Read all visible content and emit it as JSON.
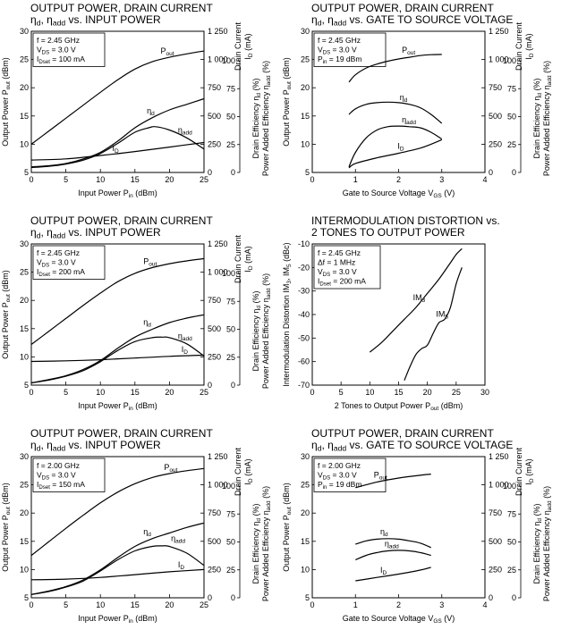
{
  "chart_data": [
    {
      "type": "line",
      "title_lines": [
        "OUTPUT POWER, DRAIN CURRENT",
        "ηd, ηadd vs. INPUT POWER"
      ],
      "conditions": [
        "f = 2.45 GHz",
        "VDS = 3.0 V",
        "IDset = 100 mA"
      ],
      "xlabel": "Input Power  Pin (dBm)",
      "ylabel": "Output Power  Pout (dBm)",
      "y2label": [
        "Drain Current",
        "ID (mA)"
      ],
      "y3label": [
        "Drain Efficiency  ηd (%)",
        "Power Added Efficiency  ηadd (%)"
      ],
      "xlim": [
        0,
        25
      ],
      "ylim": [
        5,
        30
      ],
      "y2lim": [
        0,
        1250
      ],
      "y3lim": [
        0,
        100
      ],
      "xticks": [
        0,
        5,
        10,
        15,
        20,
        25
      ],
      "yticks": [
        5,
        10,
        15,
        20,
        25,
        30
      ],
      "y2ticks": [
        "0",
        "250",
        "500",
        "750",
        "1 000",
        "1 250"
      ],
      "y3ticks": [
        0,
        25,
        50,
        75,
        100
      ],
      "series": [
        {
          "name": "Pout",
          "x": [
            0,
            2.5,
            5,
            7.5,
            10,
            12.5,
            15,
            17.5,
            20,
            22.5,
            25
          ],
          "y": [
            10,
            12.3,
            14.6,
            16.9,
            19.2,
            21.4,
            23.3,
            24.6,
            25.4,
            26,
            26.5
          ]
        },
        {
          "name": "ηd",
          "x": [
            0,
            2.5,
            5,
            7.5,
            10,
            12.5,
            15,
            17.5,
            20,
            22.5,
            25
          ],
          "y": [
            5,
            6,
            8,
            12,
            18,
            28,
            40,
            49,
            56,
            61,
            66
          ]
        },
        {
          "name": "ηadd",
          "x": [
            0,
            2.5,
            5,
            7.5,
            10,
            12.5,
            15,
            17,
            18,
            20,
            22.5,
            25
          ],
          "y": [
            4.5,
            5.5,
            7.5,
            11,
            17,
            26,
            36,
            40,
            41,
            38,
            31,
            21
          ]
        },
        {
          "name": "ID",
          "x": [
            0,
            5,
            10,
            15,
            20,
            25
          ],
          "y": [
            110,
            120,
            150,
            185,
            225,
            265
          ]
        }
      ]
    },
    {
      "type": "line",
      "title_lines": [
        "OUTPUT POWER, DRAIN CURRENT",
        "ηd, ηadd vs. GATE TO SOURCE VOLTAGE"
      ],
      "conditions": [
        "f = 2.45 GHz",
        "VDS = 3.0 V",
        "Pin = 19 dBm"
      ],
      "xlabel": "Gate to Source Voltage  VGS (V)",
      "ylabel": "Output Power  Pout (dBm)",
      "y2label": [
        "Drain Current",
        "ID (mA)"
      ],
      "y3label": [
        "Drain Efficiency  ηd (%)",
        "Power Added Efficiency  ηadd (%)"
      ],
      "xlim": [
        0,
        4
      ],
      "ylim": [
        5,
        30
      ],
      "y2lim": [
        0,
        1250
      ],
      "y3lim": [
        0,
        100
      ],
      "xticks": [
        0,
        1,
        2,
        3,
        4
      ],
      "yticks": [
        5,
        10,
        15,
        20,
        25,
        30
      ],
      "y2ticks": [
        "0",
        "250",
        "500",
        "750",
        "1 000",
        "1 250"
      ],
      "y3ticks": [
        0,
        25,
        50,
        75,
        100
      ],
      "series": [
        {
          "name": "Pout",
          "x": [
            0.85,
            1,
            1.25,
            1.5,
            1.75,
            2,
            2.25,
            2.5,
            2.75,
            3
          ],
          "y": [
            21,
            22.3,
            23.5,
            24.2,
            24.7,
            25.1,
            25.4,
            25.7,
            25.85,
            25.9
          ]
        },
        {
          "name": "ηd",
          "x": [
            0.85,
            1,
            1.25,
            1.5,
            1.75,
            2,
            2.25,
            2.5,
            2.75,
            3
          ],
          "y": [
            52,
            57,
            61,
            62.5,
            63,
            62.5,
            61,
            58,
            52,
            44
          ]
        },
        {
          "name": "ηadd",
          "x": [
            0.85,
            1,
            1.25,
            1.5,
            1.75,
            2,
            2.25,
            2.5,
            2.75,
            3
          ],
          "y": [
            5,
            18,
            31,
            38,
            41,
            41.5,
            41,
            40,
            36,
            30
          ]
        },
        {
          "name": "ID",
          "x": [
            0.85,
            1,
            1.5,
            2,
            2.5,
            2.75,
            3
          ],
          "y": [
            40,
            80,
            130,
            170,
            215,
            250,
            290
          ]
        }
      ]
    },
    {
      "type": "line",
      "title_lines": [
        "OUTPUT POWER, DRAIN CURRENT",
        "ηd, ηadd vs. INPUT POWER"
      ],
      "conditions": [
        "f = 2.45 GHz",
        "VDS = 3.0 V",
        "IDset = 200 mA"
      ],
      "xlabel": "Input Power  Pin (dBm)",
      "ylabel": "Output Power  Pout (dBm)",
      "y2label": [
        "Drain Current",
        "ID (mA)"
      ],
      "y3label": [
        "Drain Efficiency  ηd (%)",
        "Power Added Efficiency  ηadd (%)"
      ],
      "xlim": [
        0,
        25
      ],
      "ylim": [
        5,
        30
      ],
      "y2lim": [
        0,
        1250
      ],
      "y3lim": [
        0,
        100
      ],
      "xticks": [
        0,
        5,
        10,
        15,
        20,
        25
      ],
      "yticks": [
        5,
        10,
        15,
        20,
        25,
        30
      ],
      "y2ticks": [
        "0",
        "250",
        "500",
        "750",
        "1 000",
        "1 250"
      ],
      "y3ticks": [
        0,
        25,
        50,
        75,
        100
      ],
      "series": [
        {
          "name": "Pout",
          "x": [
            0,
            2.5,
            5,
            7.5,
            10,
            12.5,
            15,
            17.5,
            20,
            22.5,
            25
          ],
          "y": [
            12.2,
            14.5,
            16.8,
            19.1,
            21.3,
            23.3,
            24.8,
            25.8,
            26.5,
            27,
            27.4
          ]
        },
        {
          "name": "ηd",
          "x": [
            0,
            2.5,
            5,
            7.5,
            10,
            12.5,
            15,
            17.5,
            20,
            22.5,
            25
          ],
          "y": [
            2,
            5,
            8.5,
            14,
            22,
            33,
            43,
            50,
            56,
            60,
            63
          ]
        },
        {
          "name": "ηadd",
          "x": [
            0,
            2.5,
            5,
            7.5,
            10,
            12.5,
            15,
            17.5,
            19,
            20,
            22.5,
            25
          ],
          "y": [
            2,
            4.5,
            8,
            13,
            21,
            31,
            39,
            42.5,
            43,
            42.5,
            37,
            26
          ]
        },
        {
          "name": "ID",
          "x": [
            0,
            5,
            10,
            15,
            20,
            25
          ],
          "y": [
            210,
            215,
            225,
            240,
            255,
            265
          ]
        }
      ]
    },
    {
      "type": "line",
      "title_lines": [
        "INTERMODULATION DISTORTION vs.",
        "2 TONES TO OUTPUT POWER"
      ],
      "conditions": [
        "f = 2.45 GHz",
        "Δf = 1 MHz",
        "VDS = 3.0 V",
        "IDset = 200 mA"
      ],
      "xlabel": "2 Tones to Output Power  Pout (dBm)",
      "ylabel": "Intermodulation Distortion  IM3, IM5 (dBc)",
      "xlim": [
        0,
        30
      ],
      "ylim": [
        -70,
        -10
      ],
      "xticks": [
        0,
        5,
        10,
        15,
        20,
        25,
        30
      ],
      "yticks": [
        -70,
        -60,
        -50,
        -40,
        -30,
        -20,
        -10
      ],
      "series": [
        {
          "name": "IM3",
          "x": [
            10,
            12,
            14,
            16,
            18,
            20,
            22,
            24,
            25,
            26
          ],
          "y": [
            -56,
            -52,
            -47,
            -42,
            -37,
            -31,
            -25,
            -18,
            -14.5,
            -12
          ]
        },
        {
          "name": "IM5",
          "x": [
            16,
            17,
            18,
            19,
            20,
            21,
            22,
            23,
            24,
            25,
            26
          ],
          "y": [
            -68,
            -62,
            -57,
            -54.5,
            -53,
            -48,
            -43.5,
            -42,
            -37,
            -27,
            -20
          ]
        }
      ]
    },
    {
      "type": "line",
      "title_lines": [
        "OUTPUT POWER, DRAIN CURRENT",
        "ηd, ηadd vs. INPUT POWER"
      ],
      "conditions": [
        "f = 2.00 GHz",
        "VDS = 3.0 V",
        "IDset = 150 mA"
      ],
      "xlabel": "Input Power  Pin (dBm)",
      "ylabel": "Output Power  Pout (dBm)",
      "y2label": [
        "Drain Current",
        "ID (mA)"
      ],
      "y3label": [
        "Drain Efficiency  ηd (%)",
        "Power Added Efficiency  ηadd (%)"
      ],
      "xlim": [
        0,
        25
      ],
      "ylim": [
        5,
        30
      ],
      "y2lim": [
        0,
        1250
      ],
      "y3lim": [
        0,
        100
      ],
      "xticks": [
        0,
        5,
        10,
        15,
        20,
        25
      ],
      "yticks": [
        5,
        10,
        15,
        20,
        25,
        30
      ],
      "y2ticks": [
        "0",
        "250",
        "500",
        "750",
        "1 000",
        "1 250"
      ],
      "y3ticks": [
        0,
        25,
        50,
        75,
        100
      ],
      "series": [
        {
          "name": "Pout",
          "x": [
            0,
            2.5,
            5,
            7.5,
            10,
            12.5,
            15,
            17.5,
            20,
            22.5,
            25
          ],
          "y": [
            12.5,
            14.9,
            17.3,
            19.6,
            21.8,
            23.7,
            25.2,
            26.3,
            27,
            27.5,
            27.9
          ]
        },
        {
          "name": "ηd",
          "x": [
            0,
            2.5,
            5,
            7.5,
            10,
            12.5,
            15,
            17.5,
            20,
            22.5,
            25
          ],
          "y": [
            3,
            6,
            10,
            16,
            25,
            36,
            46,
            53,
            58,
            63,
            67
          ]
        },
        {
          "name": "ηadd",
          "x": [
            0,
            2.5,
            5,
            7.5,
            10,
            12.5,
            15,
            17.5,
            19,
            20,
            22.5,
            25
          ],
          "y": [
            3,
            5.5,
            9.5,
            15,
            24,
            34,
            42,
            46,
            46.5,
            46,
            40,
            29
          ]
        },
        {
          "name": "ID",
          "x": [
            0,
            5,
            10,
            15,
            20,
            25
          ],
          "y": [
            160,
            165,
            180,
            205,
            230,
            250
          ]
        }
      ]
    },
    {
      "type": "line",
      "title_lines": [
        "OUTPUT POWER, DRAIN CURRENT",
        "ηd, ηadd vs. GATE TO SOURCE VOLTAGE"
      ],
      "conditions": [
        "f = 2.00 GHz",
        "VDS = 3.0 V",
        "Pin = 19 dBm"
      ],
      "xlabel": "Gate to Source Voltage  VGS (V)",
      "ylabel": "Output Power  Pout (dBm)",
      "y2label": [
        "Drain Current",
        "ID (mA)"
      ],
      "y3label": [
        "Drain Efficiency  ηd (%)",
        "Power Added Efficiency  ηadd (%)"
      ],
      "xlim": [
        0,
        4
      ],
      "ylim": [
        5,
        30
      ],
      "y2lim": [
        0,
        1250
      ],
      "y3lim": [
        0,
        100
      ],
      "xticks": [
        0,
        1,
        2,
        3,
        4
      ],
      "yticks": [
        5,
        10,
        15,
        20,
        25,
        30
      ],
      "y2ticks": [
        "0",
        "250",
        "500",
        "750",
        "1 000",
        "1 250"
      ],
      "y3ticks": [
        0,
        25,
        50,
        75,
        100
      ],
      "series": [
        {
          "name": "Pout",
          "x": [
            1,
            1.5,
            2,
            2.5,
            2.75
          ],
          "y": [
            24.5,
            25.5,
            26.2,
            26.7,
            26.9
          ]
        },
        {
          "name": "ηd",
          "x": [
            1,
            1.25,
            1.5,
            1.75,
            2,
            2.25,
            2.5,
            2.75
          ],
          "y": [
            48,
            51,
            52.5,
            53,
            52.5,
            51,
            49,
            45
          ]
        },
        {
          "name": "ηadd",
          "x": [
            1,
            1.25,
            1.5,
            1.75,
            2,
            2.25,
            2.5,
            2.75
          ],
          "y": [
            34,
            38,
            40.5,
            42,
            42.5,
            42,
            40.5,
            38
          ]
        },
        {
          "name": "ID",
          "x": [
            1,
            1.5,
            2,
            2.5,
            2.75
          ],
          "y": [
            150,
            180,
            210,
            245,
            270
          ]
        }
      ]
    }
  ]
}
